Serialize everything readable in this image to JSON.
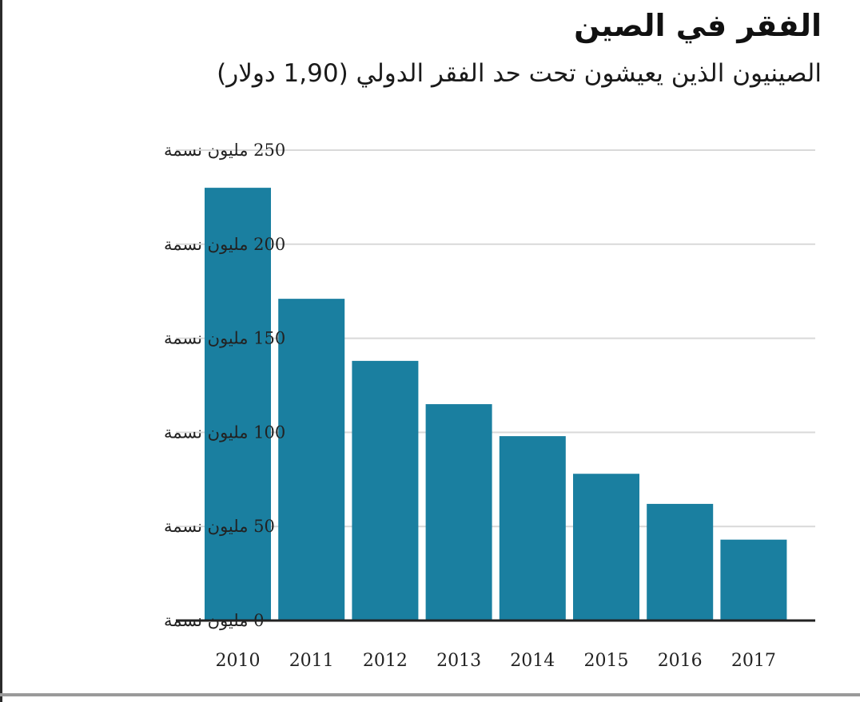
{
  "chart_data": {
    "type": "bar",
    "title": "الفقر في الصين",
    "subtitle": "الصينيون الذين يعيشون تحت حد الفقر الدولي (1,90 دولار)",
    "categories": [
      "2010",
      "2011",
      "2012",
      "2013",
      "2014",
      "2015",
      "2016",
      "2017"
    ],
    "values": [
      230,
      171,
      138,
      115,
      98,
      78,
      62,
      43
    ],
    "y_ticks": [
      0,
      50,
      100,
      150,
      200,
      250
    ],
    "y_tick_suffix": "مليون نسمة",
    "ylim": [
      0,
      250
    ],
    "xlabel": "",
    "ylabel": "",
    "grid": true,
    "colors": {
      "bar": "#1a7fa0",
      "grid": "#d9d9d9",
      "axis": "#222222"
    }
  }
}
